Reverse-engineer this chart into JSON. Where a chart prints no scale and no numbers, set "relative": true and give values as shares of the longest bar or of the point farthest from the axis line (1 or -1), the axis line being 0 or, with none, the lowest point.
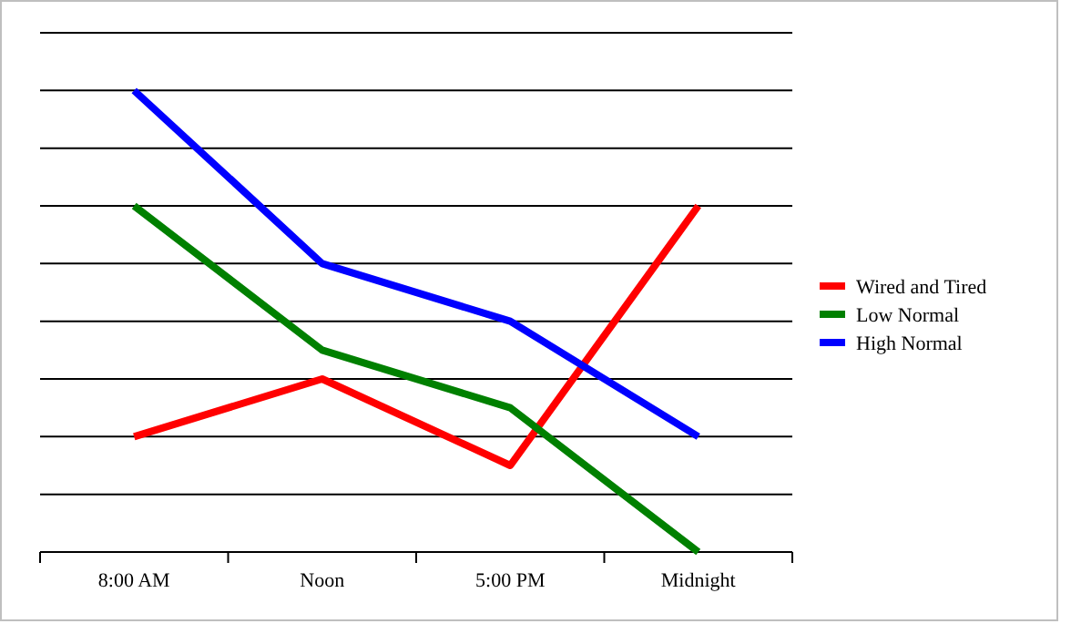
{
  "chart_data": {
    "type": "line",
    "relative": true,
    "grid": "y",
    "legend": "right",
    "marker": "none",
    "line_style": "solid",
    "categories": [
      "8:00 AM",
      "Noon",
      "5:00 PM",
      "Midnight"
    ],
    "series": [
      {
        "name": "Wired and Tired",
        "color": "#ff0000",
        "values": [
          0.25,
          0.375,
          0.1875,
          0.75
        ]
      },
      {
        "name": "Low Normal",
        "color": "#008000",
        "values": [
          0.75,
          0.4375,
          0.3125,
          0
        ]
      },
      {
        "name": "High Normal",
        "color": "#0000ff",
        "values": [
          1,
          0.625,
          0.5,
          0.25
        ]
      }
    ]
  }
}
